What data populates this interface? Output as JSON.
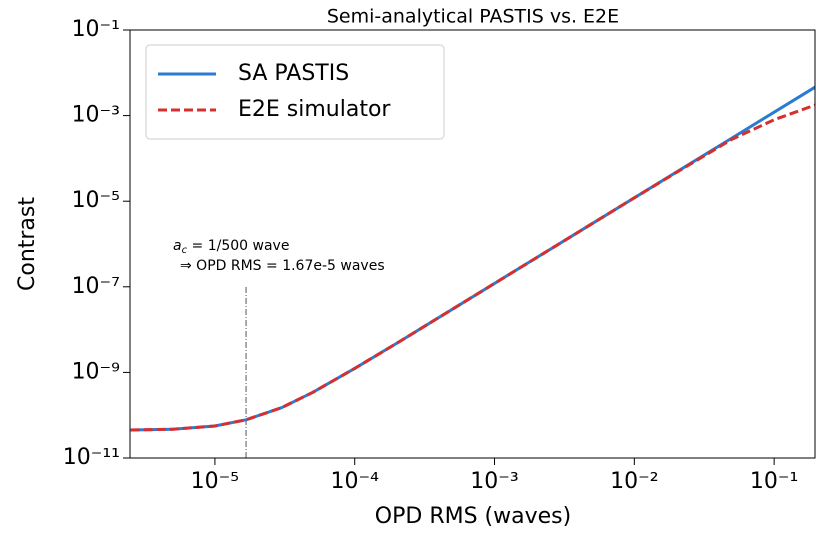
{
  "chart_data": {
    "type": "line",
    "title": "Semi-analytical PASTIS vs. E2E",
    "xlabel": "OPD RMS (waves)",
    "ylabel": "Contrast",
    "xscale": "log",
    "yscale": "log",
    "x": [
      2.5e-06,
      5e-06,
      1e-05,
      1.67e-05,
      3e-05,
      5e-05,
      0.0001,
      0.0002,
      0.0005,
      0.001,
      0.002,
      0.005,
      0.01,
      0.02,
      0.05,
      0.1,
      0.2
    ],
    "series": [
      {
        "name": "SA PASTIS",
        "color": "#2b7bd0",
        "dash": false,
        "values": [
          4.5e-11,
          4.7e-11,
          5.6e-11,
          7.8e-11,
          1.5e-10,
          3.4e-10,
          1.24e-09,
          4.8e-09,
          3e-08,
          1.2e-07,
          4.8e-07,
          3e-06,
          1.2e-05,
          4.8e-05,
          0.0003,
          0.0012,
          0.0048
        ]
      },
      {
        "name": "E2E simulator",
        "color": "#d62f2f",
        "dash": true,
        "values": [
          4.5e-11,
          4.7e-11,
          5.6e-11,
          7.8e-11,
          1.5e-10,
          3.4e-10,
          1.24e-09,
          4.8e-09,
          3e-08,
          1.2e-07,
          4.8e-07,
          3e-06,
          1.2e-05,
          4.7e-05,
          0.00028,
          0.0008,
          0.0018
        ]
      }
    ],
    "xlim": [
      2.47e-06,
      0.196
    ],
    "ylim": [
      1e-11,
      0.1
    ],
    "xticks": [
      {
        "value": 1e-05,
        "label": "10⁻⁵"
      },
      {
        "value": 0.0001,
        "label": "10⁻⁴"
      },
      {
        "value": 0.001,
        "label": "10⁻³"
      },
      {
        "value": 0.01,
        "label": "10⁻²"
      },
      {
        "value": 0.1,
        "label": "10⁻¹"
      }
    ],
    "yticks": [
      {
        "value": 1e-11,
        "label": "10⁻¹¹"
      },
      {
        "value": 1e-09,
        "label": "10⁻⁹"
      },
      {
        "value": 1e-07,
        "label": "10⁻⁷"
      },
      {
        "value": 1e-05,
        "label": "10⁻⁵"
      },
      {
        "value": 0.001,
        "label": "10⁻³"
      },
      {
        "value": 0.1,
        "label": "10⁻¹"
      }
    ],
    "legend": "upper left",
    "vline": 1.67e-05,
    "annotation": {
      "symbol": "a",
      "subscript": "c",
      "text": " = 1/500 wave",
      "line2": "⇒ OPD RMS = 1.67e-5 waves"
    }
  }
}
